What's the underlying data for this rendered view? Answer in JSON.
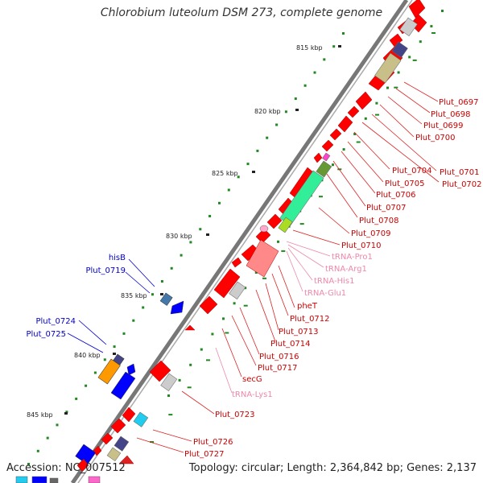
{
  "title": "Chlorobium luteolum DSM 273, complete genome",
  "accession": "Accession: NC_007512",
  "summary": "Topology: circular; Length: 2,364,842 bp; Genes: 2,137",
  "ruler": [
    "815 kbp",
    "820 kbp",
    "825 kbp",
    "830 kbp",
    "835 kbp",
    "840 kbp",
    "845 kbp"
  ],
  "labels_right": [
    "Plut_0697",
    "Plut_0698",
    "Plut_0699",
    "Plut_0700",
    "Plut_0701",
    "Plut_0702",
    "Plut_0704",
    "Plut_0705",
    "Plut_0706",
    "Plut_0707",
    "Plut_0708",
    "Plut_0709",
    "Plut_0710",
    "tRNA-Pro1",
    "tRNA-Arg1",
    "tRNA-His1",
    "tRNA-Glu1",
    "Plut_0712",
    "pheT",
    "Plut_0713",
    "Plut_0714",
    "Plut_0716",
    "Plut_0717",
    "secG",
    "tRNA-Lys1",
    "Plut_0723",
    "Plut_0726",
    "Plut_0727"
  ],
  "labels_left": [
    "hisB",
    "Plut_0719",
    "Plut_0724",
    "Plut_0725"
  ],
  "colors": {
    "forward_gene": "#ff0000",
    "rna": "#ff88bb",
    "reverse_gene": "#0000ff",
    "label_red": "#cc0000",
    "label_blue": "#0000cc",
    "label_pink": "#ee88aa",
    "backbone": "#777777",
    "tick": "#228822"
  }
}
